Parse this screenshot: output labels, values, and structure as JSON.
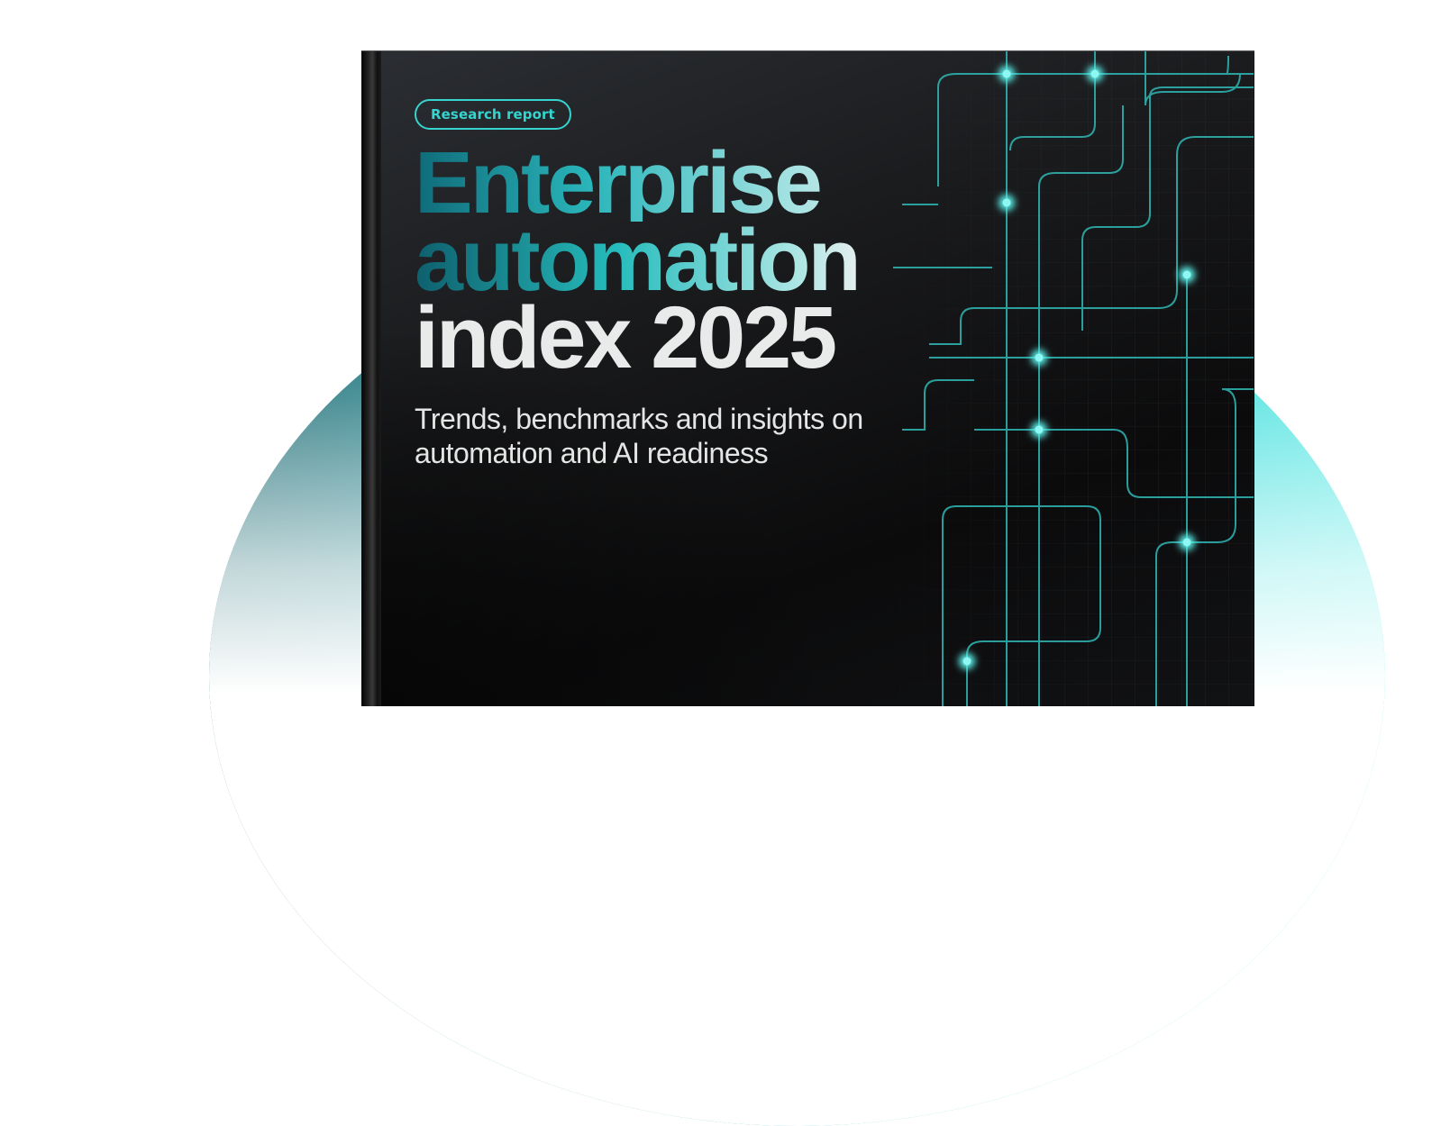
{
  "report": {
    "tag": "Research report",
    "title_line_1": "Enterprise",
    "title_line_2": "automation",
    "title_line_3": "index 2025",
    "subtitle": "Trends, benchmarks and insights on automation and AI readiness"
  },
  "colors": {
    "accent": "#35d4cf",
    "cover_background": "#111214",
    "backdrop_teal": "#2ad0d0"
  },
  "icons": [
    "circuit-lines-graphic"
  ]
}
